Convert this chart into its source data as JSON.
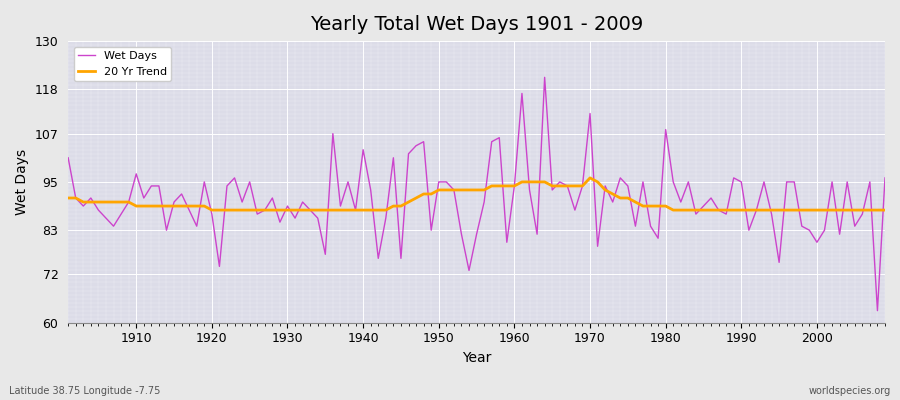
{
  "title": "Yearly Total Wet Days 1901 - 2009",
  "xlabel": "Year",
  "ylabel": "Wet Days",
  "subtitle_left": "Latitude 38.75 Longitude -7.75",
  "subtitle_right": "worldspecies.org",
  "ylim": [
    60,
    130
  ],
  "yticks": [
    60,
    72,
    83,
    95,
    107,
    118,
    130
  ],
  "line_color": "#CC44CC",
  "trend_color": "#FFA500",
  "bg_color": "#E0E0E8",
  "years": [
    1901,
    1902,
    1903,
    1904,
    1905,
    1906,
    1907,
    1908,
    1909,
    1910,
    1911,
    1912,
    1913,
    1914,
    1915,
    1916,
    1917,
    1918,
    1919,
    1920,
    1921,
    1922,
    1923,
    1924,
    1925,
    1926,
    1927,
    1928,
    1929,
    1930,
    1931,
    1932,
    1933,
    1934,
    1935,
    1936,
    1937,
    1938,
    1939,
    1940,
    1941,
    1942,
    1943,
    1944,
    1945,
    1946,
    1947,
    1948,
    1949,
    1950,
    1951,
    1952,
    1953,
    1954,
    1955,
    1956,
    1957,
    1958,
    1959,
    1960,
    1961,
    1962,
    1963,
    1964,
    1965,
    1966,
    1967,
    1968,
    1969,
    1970,
    1971,
    1972,
    1973,
    1974,
    1975,
    1976,
    1977,
    1978,
    1979,
    1980,
    1981,
    1982,
    1983,
    1984,
    1985,
    1986,
    1987,
    1988,
    1989,
    1990,
    1991,
    1992,
    1993,
    1994,
    1995,
    1996,
    1997,
    1998,
    1999,
    2000,
    2001,
    2002,
    2003,
    2004,
    2005,
    2006,
    2007,
    2008,
    2009
  ],
  "wet_days": [
    101,
    91,
    89,
    91,
    88,
    86,
    84,
    87,
    90,
    97,
    91,
    94,
    94,
    83,
    90,
    92,
    88,
    84,
    95,
    87,
    74,
    94,
    96,
    90,
    95,
    87,
    88,
    91,
    85,
    89,
    86,
    90,
    88,
    86,
    77,
    107,
    89,
    95,
    88,
    103,
    93,
    76,
    86,
    101,
    76,
    102,
    104,
    105,
    83,
    95,
    95,
    93,
    82,
    73,
    82,
    90,
    105,
    106,
    80,
    94,
    117,
    93,
    82,
    121,
    93,
    95,
    94,
    88,
    94,
    112,
    79,
    94,
    90,
    96,
    94,
    84,
    95,
    84,
    81,
    108,
    95,
    90,
    95,
    87,
    89,
    91,
    88,
    87,
    96,
    95,
    83,
    88,
    95,
    87,
    75,
    95,
    95,
    84,
    83,
    80,
    83,
    95,
    82,
    95,
    84,
    87,
    95,
    63,
    96
  ],
  "trend": [
    91,
    91,
    90,
    90,
    90,
    90,
    90,
    90,
    90,
    89,
    89,
    89,
    89,
    89,
    89,
    89,
    89,
    89,
    89,
    88,
    88,
    88,
    88,
    88,
    88,
    88,
    88,
    88,
    88,
    88,
    88,
    88,
    88,
    88,
    88,
    88,
    88,
    88,
    88,
    88,
    88,
    88,
    88,
    89,
    89,
    90,
    91,
    92,
    92,
    93,
    93,
    93,
    93,
    93,
    93,
    93,
    94,
    94,
    94,
    94,
    95,
    95,
    95,
    95,
    94,
    94,
    94,
    94,
    94,
    96,
    95,
    93,
    92,
    91,
    91,
    90,
    89,
    89,
    89,
    89,
    88,
    88,
    88,
    88,
    88,
    88,
    88,
    88,
    88,
    88,
    88,
    88,
    88,
    88,
    88,
    88,
    88,
    88,
    88,
    88,
    88,
    88,
    88,
    88,
    88,
    88,
    88,
    88,
    88
  ]
}
